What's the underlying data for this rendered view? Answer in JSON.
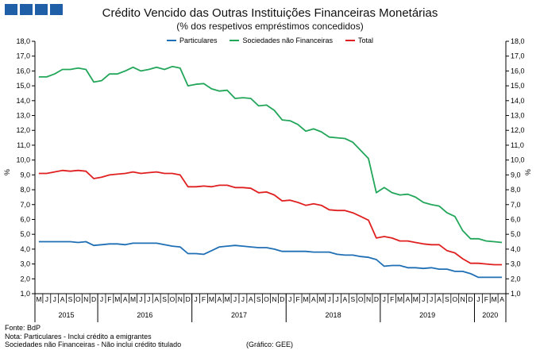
{
  "header": {
    "title": "Crédito Vencido das Outras Instituições Financeiras Monetárias",
    "subtitle": "(% dos respetivos empréstimos concedidos)"
  },
  "footer": {
    "source": "Fonte: BdP",
    "note_1": "Nota: Particulares - Inclui crédito a emigrantes",
    "note_2": "Sociedades não Financeiras - Não inclui crédito titulado",
    "credit": "(Gráfico: GEE)"
  },
  "colors": {
    "logo": "#1f5fa8",
    "axis": "#000000"
  },
  "chart_data": {
    "type": "line",
    "ylabel": "%",
    "ylabel_right": "%",
    "ylim": [
      1.0,
      18.0
    ],
    "y_ticks": [
      "1,0",
      "2,0",
      "3,0",
      "4,0",
      "5,0",
      "6,0",
      "7,0",
      "8,0",
      "9,0",
      "10,0",
      "11,0",
      "12,0",
      "13,0",
      "14,0",
      "15,0",
      "16,0",
      "17,0",
      "18,0"
    ],
    "grid": false,
    "legend_position": "top-center",
    "x": [
      "M",
      "J",
      "J",
      "A",
      "S",
      "O",
      "N",
      "D",
      "J",
      "F",
      "M",
      "A",
      "M",
      "J",
      "J",
      "A",
      "S",
      "O",
      "N",
      "D",
      "J",
      "F",
      "M",
      "A",
      "M",
      "J",
      "J",
      "A",
      "S",
      "O",
      "N",
      "D",
      "J",
      "F",
      "M",
      "A",
      "M",
      "J",
      "J",
      "A",
      "S",
      "O",
      "N",
      "D",
      "J",
      "F",
      "M",
      "A",
      "M",
      "J",
      "J",
      "A",
      "S",
      "O",
      "N",
      "D",
      "J",
      "F",
      "M",
      "A"
    ],
    "year_labels": [
      {
        "label": "2015",
        "start": 0,
        "end": 7
      },
      {
        "label": "2016",
        "start": 8,
        "end": 19
      },
      {
        "label": "2017",
        "start": 20,
        "end": 31
      },
      {
        "label": "2018",
        "start": 32,
        "end": 43
      },
      {
        "label": "2019",
        "start": 44,
        "end": 55
      },
      {
        "label": "2020",
        "start": 56,
        "end": 59
      }
    ],
    "series": [
      {
        "name": "Particulares",
        "color": "#1f6fb5",
        "values": [
          4.5,
          4.5,
          4.5,
          4.5,
          4.5,
          4.45,
          4.5,
          4.25,
          4.3,
          4.35,
          4.35,
          4.3,
          4.4,
          4.4,
          4.4,
          4.4,
          4.3,
          4.2,
          4.15,
          3.7,
          3.7,
          3.65,
          3.9,
          4.15,
          4.2,
          4.25,
          4.2,
          4.15,
          4.1,
          4.1,
          4.0,
          3.85,
          3.85,
          3.85,
          3.85,
          3.8,
          3.8,
          3.8,
          3.65,
          3.6,
          3.6,
          3.5,
          3.45,
          3.3,
          2.85,
          2.9,
          2.9,
          2.75,
          2.75,
          2.7,
          2.75,
          2.65,
          2.65,
          2.5,
          2.5,
          2.35,
          2.1,
          2.1,
          2.1,
          2.1
        ]
      },
      {
        "name": "Sociedades não Financeiras",
        "color": "#22a65a",
        "values": [
          15.6,
          15.6,
          15.8,
          16.1,
          16.1,
          16.2,
          16.1,
          15.25,
          15.35,
          15.8,
          15.8,
          16.0,
          16.25,
          16.0,
          16.1,
          16.25,
          16.1,
          16.3,
          16.2,
          15.0,
          15.1,
          15.15,
          14.8,
          14.65,
          14.7,
          14.15,
          14.2,
          14.15,
          13.65,
          13.7,
          13.35,
          12.7,
          12.65,
          12.4,
          11.95,
          12.1,
          11.9,
          11.55,
          11.5,
          11.45,
          11.2,
          10.65,
          10.1,
          7.8,
          8.15,
          7.8,
          7.65,
          7.7,
          7.5,
          7.15,
          7.0,
          6.9,
          6.45,
          6.2,
          5.25,
          4.7,
          4.7,
          4.55,
          4.5,
          4.45
        ]
      },
      {
        "name": "Total",
        "color": "#e02020",
        "values": [
          9.1,
          9.1,
          9.2,
          9.3,
          9.25,
          9.3,
          9.25,
          8.75,
          8.85,
          9.0,
          9.05,
          9.1,
          9.2,
          9.1,
          9.15,
          9.2,
          9.1,
          9.1,
          9.0,
          8.2,
          8.2,
          8.25,
          8.2,
          8.3,
          8.3,
          8.15,
          8.15,
          8.1,
          7.8,
          7.85,
          7.65,
          7.25,
          7.3,
          7.15,
          6.95,
          7.05,
          6.95,
          6.65,
          6.6,
          6.6,
          6.45,
          6.2,
          5.95,
          4.75,
          4.85,
          4.75,
          4.55,
          4.55,
          4.45,
          4.35,
          4.3,
          4.3,
          3.9,
          3.75,
          3.35,
          3.05,
          3.05,
          3.0,
          2.95,
          2.95
        ]
      }
    ]
  }
}
